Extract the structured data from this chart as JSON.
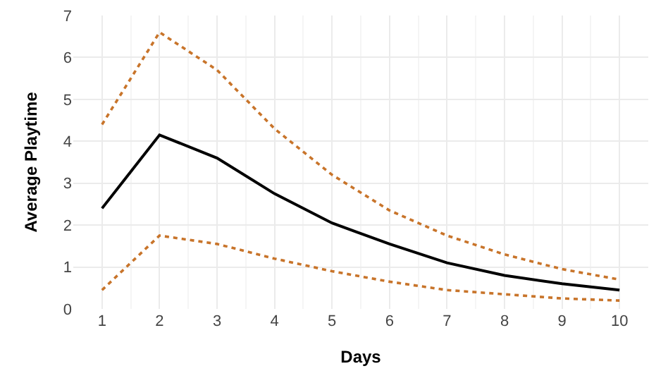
{
  "chart_data": {
    "type": "line",
    "xlabel": "Days",
    "ylabel": "Average Playtime",
    "x": [
      1,
      2,
      3,
      4,
      5,
      6,
      7,
      8,
      9,
      10
    ],
    "series": [
      {
        "color": "#000000",
        "line_style": "solid",
        "values": [
          2.4,
          4.15,
          3.6,
          2.75,
          2.05,
          1.55,
          1.1,
          0.8,
          0.6,
          0.45
        ]
      },
      {
        "color": "#c8742a",
        "line_style": "dotted",
        "values": [
          4.4,
          6.6,
          5.7,
          4.3,
          3.2,
          2.35,
          1.75,
          1.3,
          0.95,
          0.7
        ]
      },
      {
        "color": "#c8742a",
        "line_style": "dotted",
        "values": [
          0.45,
          1.75,
          1.55,
          1.2,
          0.9,
          0.65,
          0.45,
          0.35,
          0.25,
          0.2
        ]
      }
    ],
    "xlim": [
      0.5,
      10.5
    ],
    "xticks": [
      1,
      2,
      3,
      4,
      5,
      6,
      7,
      8,
      9,
      10
    ],
    "ylim": [
      0,
      7
    ],
    "yticks": [
      0,
      1,
      2,
      3,
      4,
      5,
      6,
      7
    ],
    "grid": true,
    "marker": "none"
  }
}
